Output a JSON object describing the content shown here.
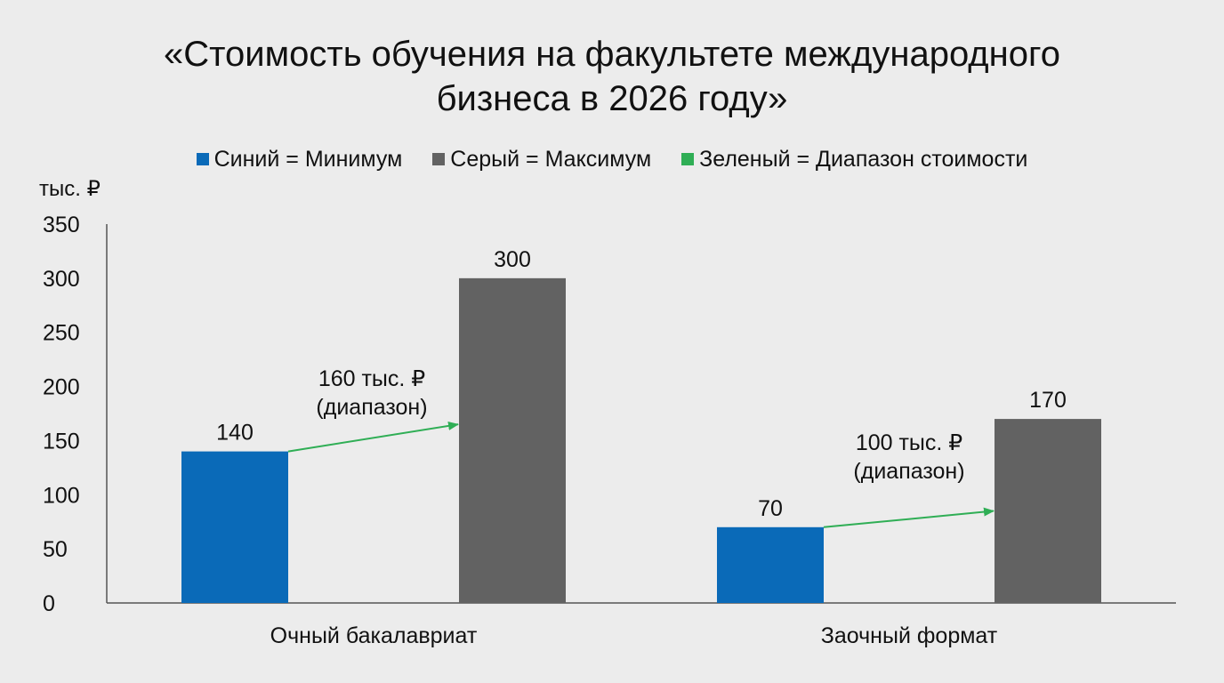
{
  "chart_data": {
    "type": "bar",
    "title_line1": "«Стоимость обучения на факультете международного",
    "title_line2": "бизнеса в 2026 году»",
    "ylabel": "тыс. ₽",
    "ylim": [
      0,
      350
    ],
    "yticks": [
      0,
      50,
      100,
      150,
      200,
      250,
      300,
      350
    ],
    "categories": [
      "Очный бакалавриат",
      "Заочный формат"
    ],
    "series": [
      {
        "name": "Синий = Минимум",
        "color": "#0a6ab8",
        "values": [
          140,
          70
        ]
      },
      {
        "name": "Серый = Максимум",
        "color": "#626262",
        "values": [
          300,
          170
        ]
      }
    ],
    "range_legend": {
      "name": "Зеленый = Диапазон стоимости",
      "color": "#2fae55"
    },
    "annotations": [
      {
        "line1": "160 тыс. ₽",
        "line2": "(диапазон)"
      },
      {
        "line1": "100 тыс. ₽",
        "line2": "(диапазон)"
      }
    ],
    "data_labels": [
      [
        "140",
        "300"
      ],
      [
        "70",
        "170"
      ]
    ],
    "grid": false,
    "legend_position": "top"
  }
}
